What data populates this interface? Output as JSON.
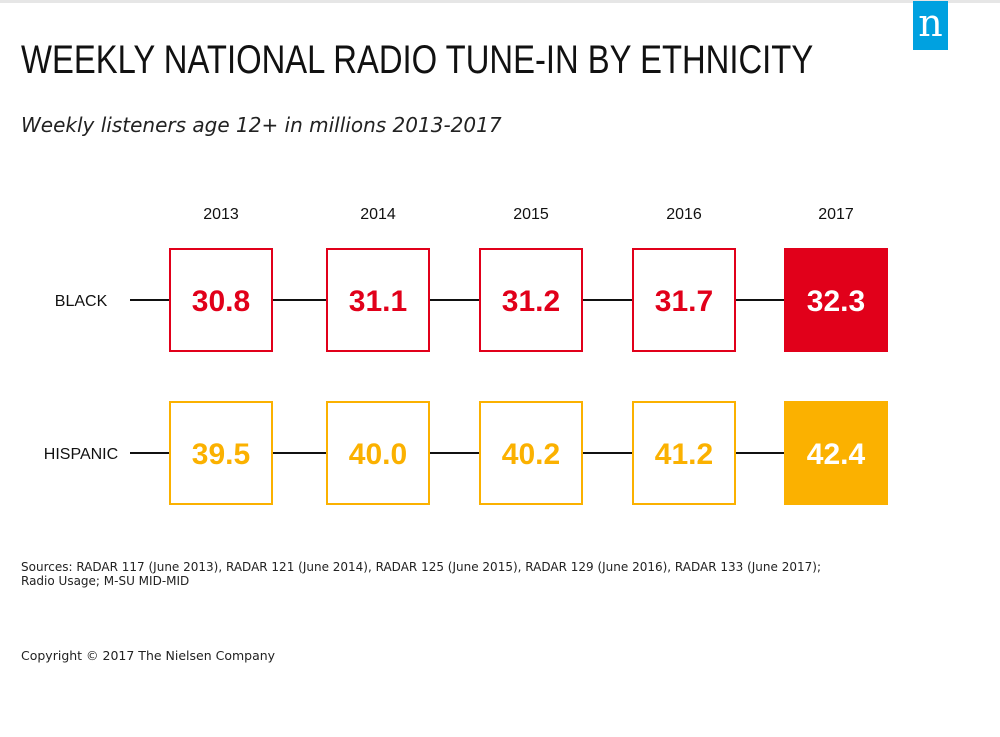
{
  "page": {
    "title": "WEEKLY NATIONAL RADIO TUNE-IN BY ETHNICITY",
    "subtitle": "Weekly listeners age 12+ in millions 2013-2017",
    "sources_line1": "Sources: RADAR 117 (June 2013), RADAR 121 (June 2014), RADAR 125 (June 2015), RADAR 129 (June 2016), RADAR 133 (June 2017);",
    "sources_line2": "Radio Usage; M-SU MID-MID",
    "copyright": "Copyright © 2017 The Nielsen Company",
    "logo_letter": "n",
    "logo_color": "#00a1e0"
  },
  "chart_data": {
    "type": "table",
    "categories": [
      "2013",
      "2014",
      "2015",
      "2016",
      "2017"
    ],
    "series": [
      {
        "name": "BLACK",
        "values": [
          "30.8",
          "31.1",
          "31.2",
          "31.7",
          "32.3"
        ],
        "color": "#e1001a"
      },
      {
        "name": "HISPANIC",
        "values": [
          "39.5",
          "40.0",
          "40.2",
          "41.2",
          "42.4"
        ],
        "color": "#fbb100"
      }
    ],
    "highlight": "2017",
    "legend": "none",
    "grid": false
  }
}
